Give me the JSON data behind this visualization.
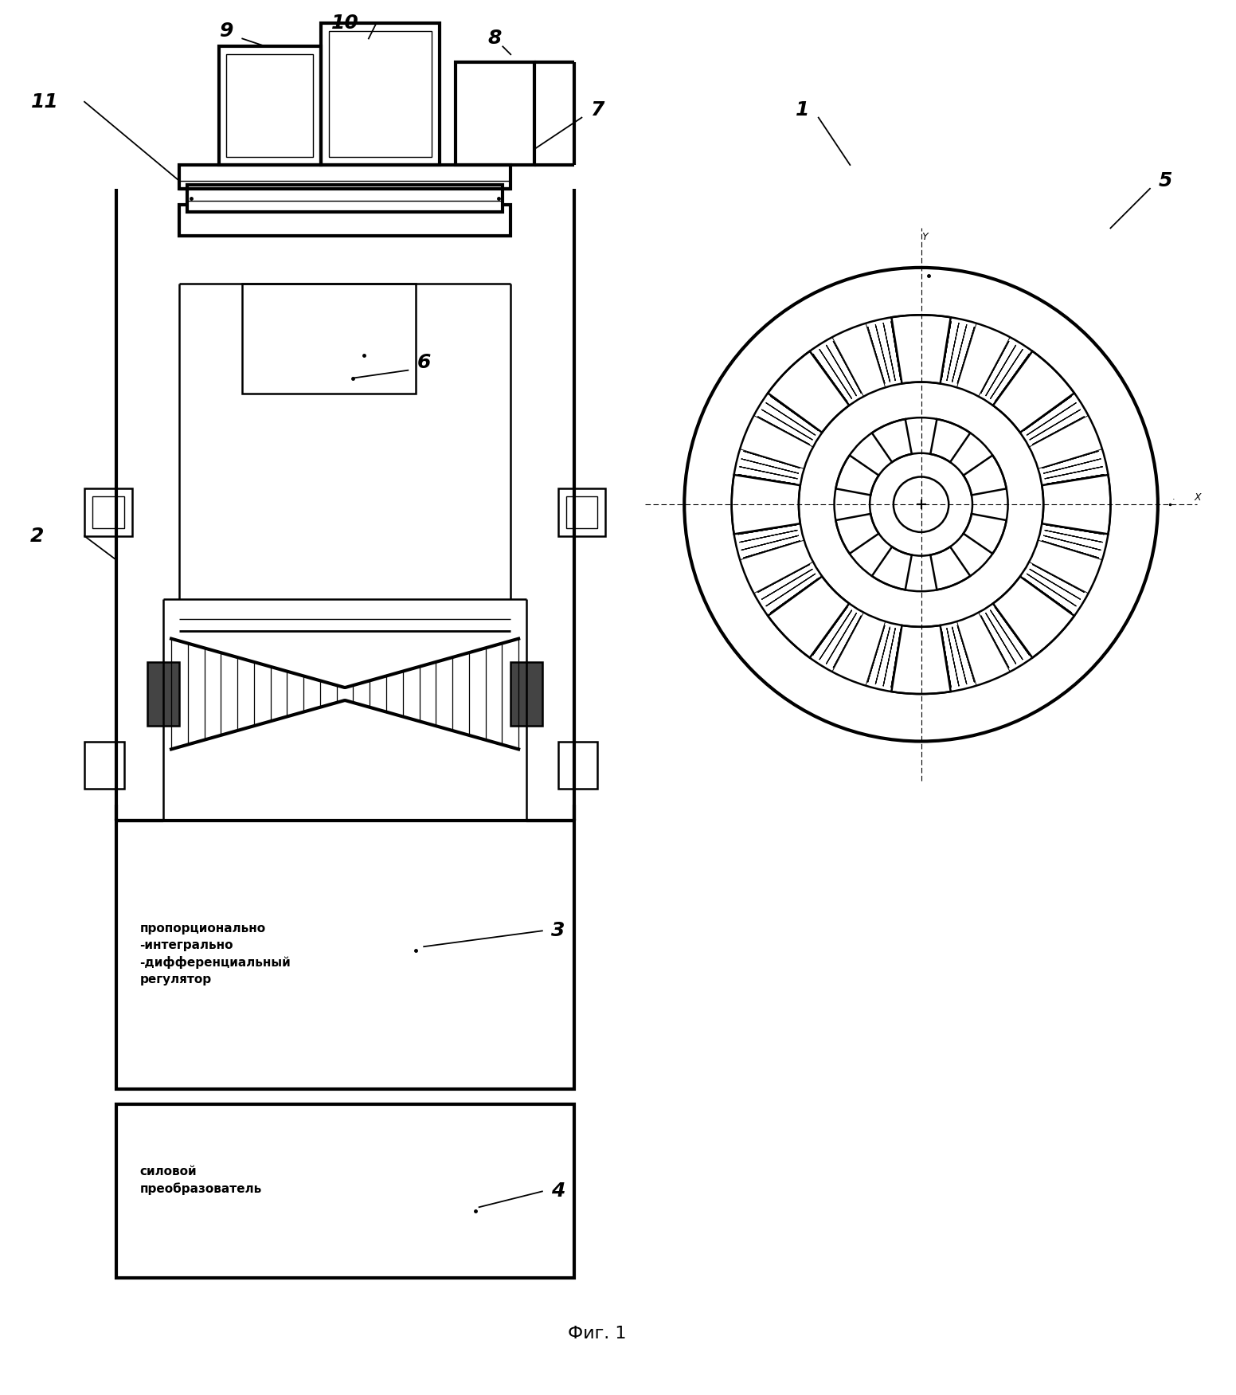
{
  "fig_caption": "Фиг. 1",
  "pid_text": "пропорционально\n-интегрально\n-дифференциальный\nрегулятор",
  "power_text": "силовой\nпреобразователь",
  "bg_color": "#ffffff",
  "line_color": "#000000",
  "lw": 1.8,
  "lw_thick": 3.0,
  "lw_thin": 1.0,
  "lw_med": 2.0
}
